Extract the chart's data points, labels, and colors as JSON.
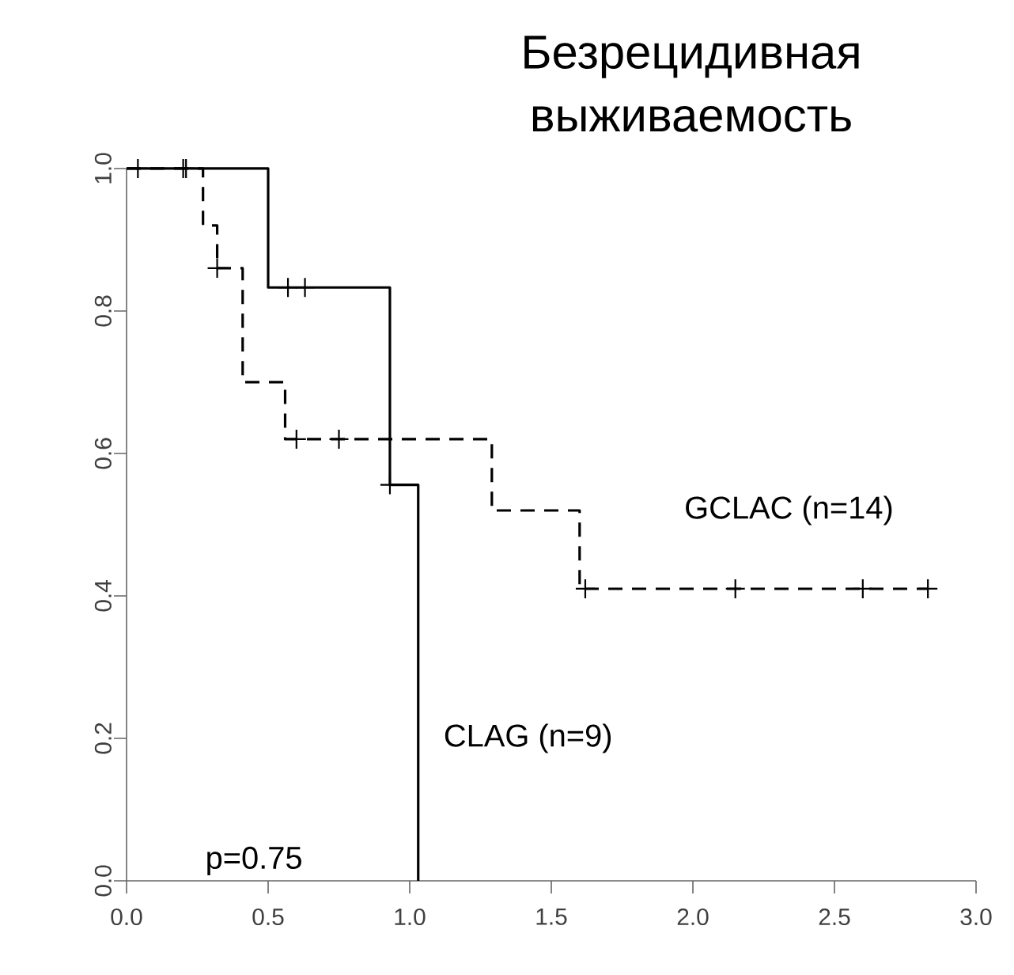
{
  "chart_data": {
    "type": "step",
    "title": "Безрецидивная выживаемость",
    "series": [
      {
        "name": "CLAG (n=9)",
        "color": "#000000",
        "line_style": "solid",
        "marker": "none",
        "x": [
          0,
          0.5,
          0.93,
          1.03
        ],
        "values": [
          1,
          0.833,
          0.556,
          0
        ]
      },
      {
        "name": "GCLAC (n=14)",
        "color": "#000000",
        "line_style": "dashed",
        "marker": "none",
        "x": [
          0,
          0.27,
          0.32,
          0.41,
          0.56,
          1.29,
          1.6,
          2.83
        ],
        "values": [
          1,
          0.92,
          0.86,
          0.7,
          0.62,
          0.52,
          0.41,
          0.41
        ]
      },
      {
        "type": "scatter",
        "color": "#000000",
        "marker": "cross",
        "x": [
          0.57,
          0.63,
          0.93
        ],
        "values": [
          0.833,
          0.833,
          0.556
        ]
      },
      {
        "type": "scatter",
        "color": "#000000",
        "marker": "cross",
        "x": [
          0.04,
          0.2,
          0.21,
          0.32,
          0.6,
          0.75,
          1.62,
          2.15,
          2.6,
          2.83
        ],
        "values": [
          1,
          1,
          1,
          0.86,
          0.62,
          0.62,
          0.41,
          0.41,
          0.41,
          0.41
        ]
      }
    ],
    "annotations": [
      "p=0.75"
    ],
    "xlim": [
      0,
      3
    ],
    "ylim": [
      0,
      1
    ],
    "xticks": [
      {
        "value": 0,
        "label": "0.0"
      },
      0.5,
      {
        "value": 1,
        "label": "1.0"
      },
      1.5,
      {
        "value": 2,
        "label": "2.0"
      },
      2.5,
      {
        "value": 3,
        "label": "3.0"
      }
    ],
    "yticks": [
      {
        "value": 0,
        "label": "0.0"
      },
      0.2,
      0.4,
      0.6,
      0.8,
      {
        "value": 1,
        "label": "1.0"
      }
    ],
    "grid": false,
    "legend": false
  }
}
